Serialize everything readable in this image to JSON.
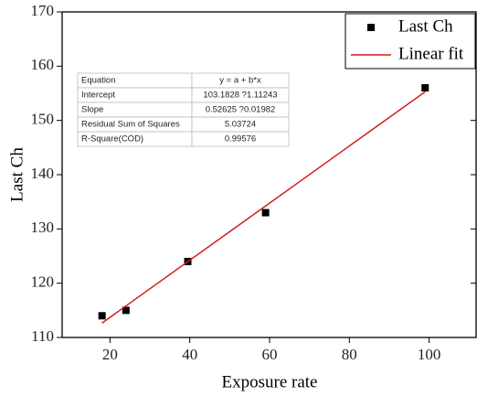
{
  "chart_data": {
    "type": "scatter",
    "xlabel": "Exposure rate",
    "ylabel": "Last Ch",
    "xlim": [
      8,
      112
    ],
    "ylim": [
      110,
      170
    ],
    "xticks": [
      20,
      40,
      60,
      80,
      100
    ],
    "yticks": [
      110,
      120,
      130,
      140,
      150,
      160,
      170
    ],
    "legend": "upper right",
    "series": [
      {
        "name": "Last Ch",
        "color": "#000000",
        "marker": "square",
        "x": [
          18,
          24,
          39.5,
          59,
          99
        ],
        "values": [
          114,
          115,
          124,
          133,
          156
        ]
      },
      {
        "name": "Linear fit",
        "color": "#d41c1c",
        "marker": "line",
        "x": [
          18,
          99
        ],
        "values": [
          112.66,
          155.28
        ]
      }
    ],
    "table": {
      "rows": [
        [
          "Equation",
          "y = a + b*x"
        ],
        [
          "Intercept",
          "103.1828 ?1.11243"
        ],
        [
          "Slope",
          "0.52625 ?0.01982"
        ],
        [
          "Residual Sum of Squares",
          "5.03724"
        ],
        [
          "R-Square(COD)",
          "0.99576"
        ]
      ]
    }
  }
}
